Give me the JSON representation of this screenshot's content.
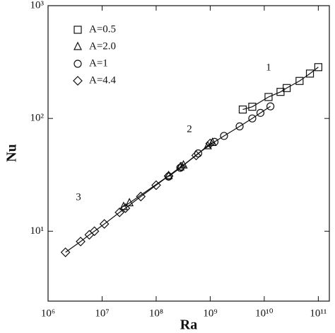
{
  "chart_data": {
    "type": "scatter",
    "x_label": "Ra",
    "y_label": "Nu",
    "x_log": true,
    "y_log": true,
    "xlim": [
      1000000,
      160000000000
    ],
    "ylim": [
      2.4,
      1000
    ],
    "xticks": [
      {
        "value": 1000000,
        "label": "10⁶"
      },
      {
        "value": 10000000,
        "label": "10⁷"
      },
      {
        "value": 100000000,
        "label": "10⁸"
      },
      {
        "value": 1000000000,
        "label": "10⁹"
      },
      {
        "value": 10000000000,
        "label": "10¹⁰"
      },
      {
        "value": 100000000000,
        "label": "10¹¹"
      }
    ],
    "yticks": [
      {
        "value": 10,
        "label": "10¹"
      },
      {
        "value": 100,
        "label": "10²"
      },
      {
        "value": 1000,
        "label": "10³"
      }
    ],
    "legend": "upper left",
    "annotations": [
      "1",
      "2",
      "3"
    ],
    "series": [
      {
        "name": "A=0.5",
        "marker": "square",
        "color": "#111111",
        "x": [
          4000000000,
          6000000000,
          12000000000,
          20000000000,
          26000000000,
          45000000000,
          70000000000,
          100000000000
        ],
        "values": [
          120,
          127,
          155,
          172,
          186,
          215,
          250,
          285
        ]
      },
      {
        "name": "A=2.0",
        "marker": "triangle",
        "color": "#111111",
        "x": [
          25000000,
          32000000,
          170000000,
          280000000,
          320000000,
          900000000,
          1100000000
        ],
        "values": [
          16.5,
          17.8,
          31,
          37,
          38.5,
          57,
          61
        ]
      },
      {
        "name": "A=1",
        "marker": "circle",
        "color": "#111111",
        "x": [
          170000000,
          280000000,
          600000000,
          1200000000,
          1800000000,
          3500000000,
          6000000000,
          8500000000,
          13000000000
        ],
        "values": [
          30.5,
          36.5,
          49,
          62,
          70,
          85,
          100,
          112,
          128
        ]
      },
      {
        "name": "A=4.4",
        "marker": "diamond",
        "color": "#111111",
        "x": [
          2100000,
          4000000,
          5800000,
          7200000,
          11000000,
          21000000,
          27000000,
          52000000,
          100000000,
          170000000,
          290000000,
          550000000,
          1000000000
        ],
        "values": [
          6.5,
          8.1,
          9.3,
          10.0,
          11.6,
          14.7,
          16.0,
          20.3,
          25.6,
          30.9,
          37.3,
          47,
          60
        ]
      }
    ]
  }
}
